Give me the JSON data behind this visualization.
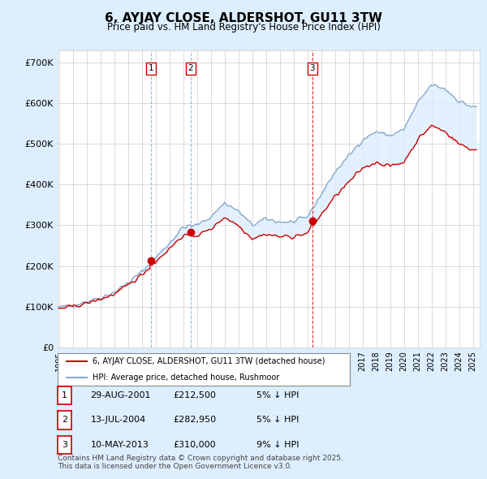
{
  "title": "6, AYJAY CLOSE, ALDERSHOT, GU11 3TW",
  "subtitle": "Price paid vs. HM Land Registry's House Price Index (HPI)",
  "ylim": [
    0,
    730000
  ],
  "xlim_start": 1994.9,
  "xlim_end": 2025.5,
  "sale_color": "#cc0000",
  "hpi_color": "#88aacc",
  "shade_color": "#ddeeff",
  "background_color": "#ddeeff",
  "plot_bg_color": "#ffffff",
  "grid_color": "#cccccc",
  "purchases": [
    {
      "num": 1,
      "date_num": 2001.66,
      "price": 212500,
      "label": "1",
      "vline_color": "#88aacc",
      "vline_style": "--"
    },
    {
      "num": 2,
      "date_num": 2004.54,
      "price": 282950,
      "label": "2",
      "vline_color": "#88aacc",
      "vline_style": "--"
    },
    {
      "num": 3,
      "date_num": 2013.36,
      "price": 310000,
      "label": "3",
      "vline_color": "#cc0000",
      "vline_style": "--"
    }
  ],
  "purchase_table": [
    {
      "num": "1",
      "date": "29-AUG-2001",
      "price": "£212,500",
      "pct": "5% ↓ HPI"
    },
    {
      "num": "2",
      "date": "13-JUL-2004",
      "price": "£282,950",
      "pct": "5% ↓ HPI"
    },
    {
      "num": "3",
      "date": "10-MAY-2013",
      "price": "£310,000",
      "pct": "9% ↓ HPI"
    }
  ],
  "legend_sale_label": "6, AYJAY CLOSE, ALDERSHOT, GU11 3TW (detached house)",
  "legend_hpi_label": "HPI: Average price, detached house, Rushmoor",
  "footer": "Contains HM Land Registry data © Crown copyright and database right 2025.\nThis data is licensed under the Open Government Licence v3.0.",
  "xticks": [
    1995,
    1996,
    1997,
    1998,
    1999,
    2000,
    2001,
    2002,
    2003,
    2004,
    2005,
    2006,
    2007,
    2008,
    2009,
    2010,
    2011,
    2012,
    2013,
    2014,
    2015,
    2016,
    2017,
    2018,
    2019,
    2020,
    2021,
    2022,
    2023,
    2024,
    2025
  ],
  "hpi_anchors_x": [
    1995,
    1996,
    1997,
    1998,
    1999,
    2000,
    2001,
    2002,
    2003,
    2004,
    2005,
    2006,
    2007,
    2008,
    2009,
    2010,
    2011,
    2012,
    2013,
    2014,
    2015,
    2016,
    2017,
    2018,
    2019,
    2020,
    2021,
    2022,
    2023,
    2024,
    2025
  ],
  "hpi_anchors_y": [
    98000,
    103000,
    112000,
    122000,
    135000,
    158000,
    185000,
    220000,
    255000,
    295000,
    300000,
    320000,
    355000,
    335000,
    300000,
    315000,
    308000,
    308000,
    320000,
    375000,
    430000,
    470000,
    510000,
    530000,
    520000,
    535000,
    600000,
    645000,
    635000,
    605000,
    590000
  ],
  "sale_anchors_x": [
    1995,
    1996,
    1997,
    1998,
    1999,
    2000,
    2001,
    2002,
    2003,
    2004,
    2005,
    2006,
    2007,
    2008,
    2009,
    2010,
    2011,
    2012,
    2013,
    2014,
    2015,
    2016,
    2017,
    2018,
    2019,
    2020,
    2021,
    2022,
    2023,
    2024,
    2025
  ],
  "sale_anchors_y": [
    95000,
    100000,
    108000,
    118000,
    130000,
    152000,
    178000,
    210000,
    242000,
    275000,
    275000,
    290000,
    320000,
    300000,
    268000,
    278000,
    272000,
    272000,
    280000,
    325000,
    370000,
    405000,
    440000,
    455000,
    445000,
    455000,
    510000,
    545000,
    530000,
    500000,
    485000
  ]
}
